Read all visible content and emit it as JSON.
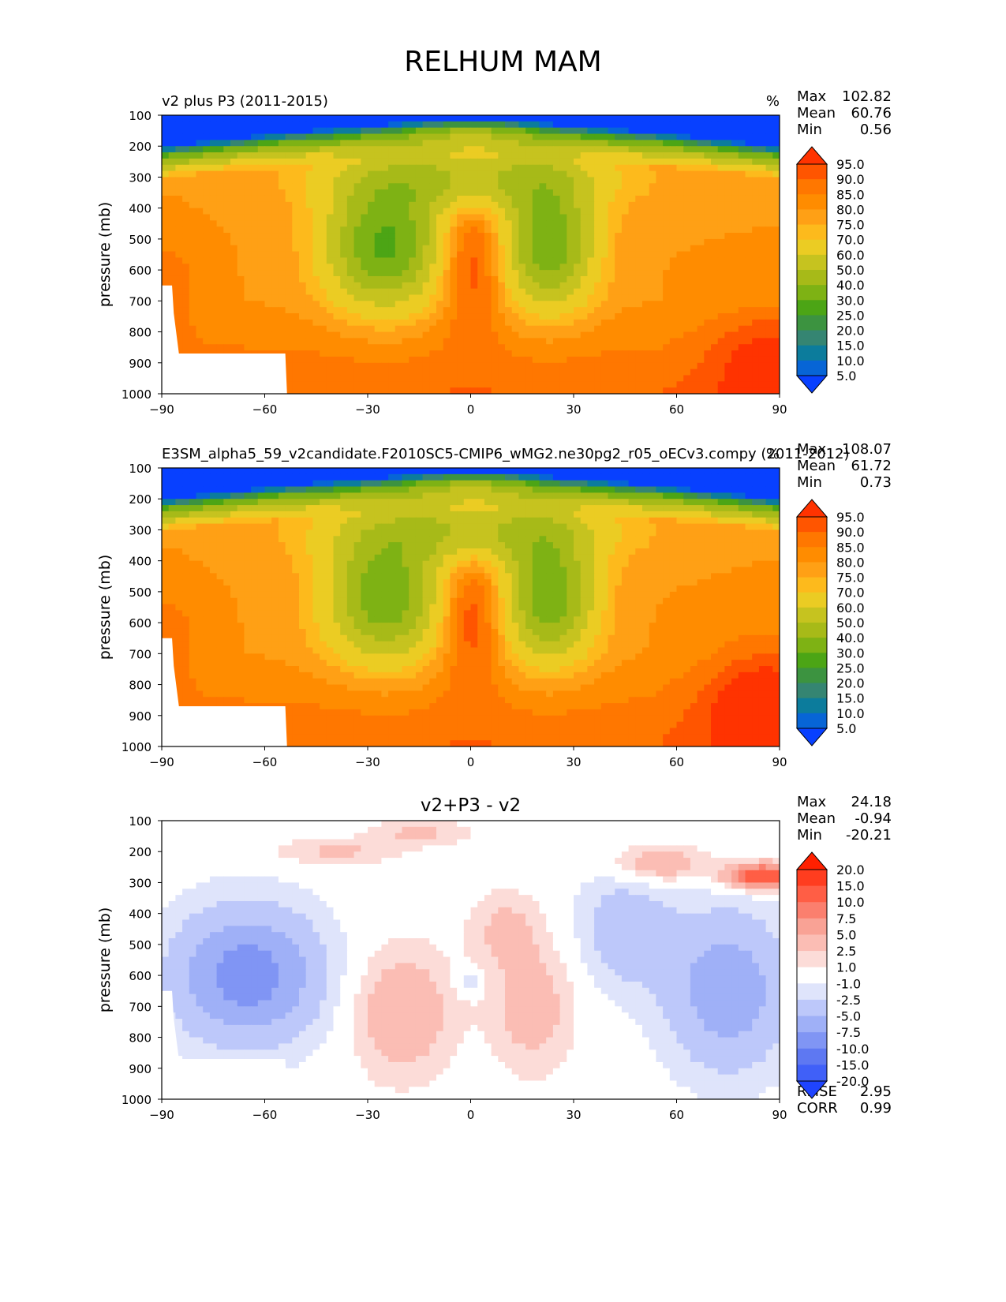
{
  "figure": {
    "title": "RELHUM MAM"
  },
  "chart_data": [
    {
      "type": "heatmap",
      "subtitle_left": "v2 plus P3 (2011-2015)",
      "units": "%",
      "title": "",
      "xlabel": "",
      "ylabel": "pressure (mb)",
      "xlim": [
        -90,
        90
      ],
      "ylim": [
        1000,
        100
      ],
      "x_ticks": [
        "−90",
        "−60",
        "−30",
        "0",
        "30",
        "60",
        "90"
      ],
      "y_ticks": [
        "100",
        "200",
        "300",
        "400",
        "500",
        "600",
        "700",
        "800",
        "900",
        "1000"
      ],
      "stats": [
        {
          "label": "Max",
          "value": "102.82"
        },
        {
          "label": "Mean",
          "value": "60.76"
        },
        {
          "label": "Min",
          "value": "0.56"
        }
      ],
      "colorbar": {
        "levels": [
          "95.0",
          "90.0",
          "85.0",
          "80.0",
          "75.0",
          "70.0",
          "60.0",
          "50.0",
          "40.0",
          "30.0",
          "25.0",
          "20.0",
          "15.0",
          "10.0",
          "5.0"
        ],
        "colors": [
          "#ff3300",
          "#ff5500",
          "#ff7700",
          "#ff8c00",
          "#ffa015",
          "#fdba1c",
          "#ebcc23",
          "#c6c31f",
          "#a7ba18",
          "#7eb214",
          "#4ca515",
          "#3c9340",
          "#358572",
          "#0c7c9c",
          "#0765d6",
          "#0840ff"
        ]
      },
      "field": "v2plusP3"
    },
    {
      "type": "heatmap",
      "subtitle_left": "E3SM_alpha5_59_v2candidate.F2010SC5-CMIP6_wMG2.ne30pg2_r05_oECv3.compy (2011-2012)",
      "units": "%",
      "title": "",
      "xlabel": "",
      "ylabel": "pressure (mb)",
      "xlim": [
        -90,
        90
      ],
      "ylim": [
        1000,
        100
      ],
      "x_ticks": [
        "−90",
        "−60",
        "−30",
        "0",
        "30",
        "60",
        "90"
      ],
      "y_ticks": [
        "100",
        "200",
        "300",
        "400",
        "500",
        "600",
        "700",
        "800",
        "900",
        "1000"
      ],
      "stats": [
        {
          "label": "Max",
          "value": "108.07"
        },
        {
          "label": "Mean",
          "value": "61.72"
        },
        {
          "label": "Min",
          "value": "0.73"
        }
      ],
      "colorbar": {
        "levels": [
          "95.0",
          "90.0",
          "85.0",
          "80.0",
          "75.0",
          "70.0",
          "60.0",
          "50.0",
          "40.0",
          "30.0",
          "25.0",
          "20.0",
          "15.0",
          "10.0",
          "5.0"
        ],
        "colors": [
          "#ff3300",
          "#ff5500",
          "#ff7700",
          "#ff8c00",
          "#ffa015",
          "#fdba1c",
          "#ebcc23",
          "#c6c31f",
          "#a7ba18",
          "#7eb214",
          "#4ca515",
          "#3c9340",
          "#358572",
          "#0c7c9c",
          "#0765d6",
          "#0840ff"
        ]
      },
      "field": "v2"
    },
    {
      "type": "heatmap",
      "title": "v2+P3 - v2",
      "subtitle_left": "",
      "units": "",
      "xlabel": "",
      "ylabel": "pressure (mb)",
      "xlim": [
        -90,
        90
      ],
      "ylim": [
        1000,
        100
      ],
      "x_ticks": [
        "−90",
        "−60",
        "−30",
        "0",
        "30",
        "60",
        "90"
      ],
      "y_ticks": [
        "100",
        "200",
        "300",
        "400",
        "500",
        "600",
        "700",
        "800",
        "900",
        "1000"
      ],
      "stats": [
        {
          "label": "Max",
          "value": "24.18"
        },
        {
          "label": "Mean",
          "value": "-0.94"
        },
        {
          "label": "Min",
          "value": "-20.21"
        }
      ],
      "footer_stats": [
        {
          "label": "RMSE",
          "value": "2.95"
        },
        {
          "label": "CORR",
          "value": "0.99"
        }
      ],
      "colorbar": {
        "levels": [
          "20.0",
          "15.0",
          "10.0",
          "7.5",
          "5.0",
          "2.5",
          "1.0",
          "-1.0",
          "-2.5",
          "-5.0",
          "-7.5",
          "-10.0",
          "-15.0",
          "-20.0"
        ],
        "colors": [
          "#ff2000",
          "#ff3d1f",
          "#ff5e45",
          "#fb7f6e",
          "#f9a295",
          "#fbbdb4",
          "#fcdcd8",
          "#ffffff",
          "#dfe4fb",
          "#bdc8fa",
          "#9fb0f7",
          "#8095f4",
          "#5e78f2",
          "#4060f8",
          "#1f44ff"
        ]
      },
      "field": "diff"
    }
  ]
}
